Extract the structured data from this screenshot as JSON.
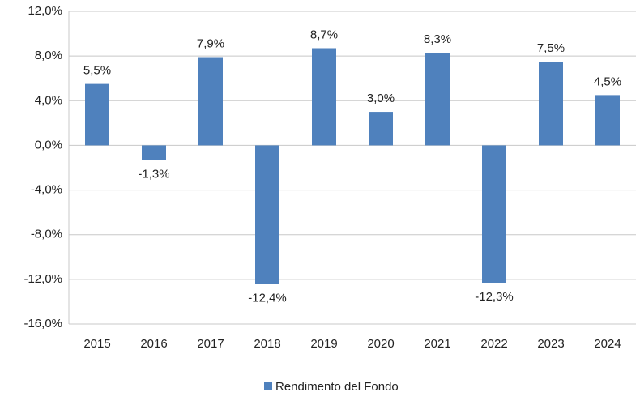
{
  "chart_data": {
    "type": "bar",
    "categories": [
      "2015",
      "2016",
      "2017",
      "2018",
      "2019",
      "2020",
      "2021",
      "2022",
      "2023",
      "2024"
    ],
    "series": [
      {
        "name": "Rendimento del Fondo",
        "color": "#4f81bd",
        "values": [
          5.5,
          -1.3,
          7.9,
          -12.4,
          8.7,
          3.0,
          8.3,
          -12.3,
          7.5,
          4.5
        ],
        "value_labels": [
          "5,5%",
          "-1,3%",
          "7,9%",
          "-12,4%",
          "8,7%",
          "3,0%",
          "8,3%",
          "-12,3%",
          "7,5%",
          "4,5%"
        ]
      }
    ],
    "ylim": [
      -16,
      12
    ],
    "yticks": [
      {
        "value": -16,
        "label": "-16,0%"
      },
      {
        "value": -12,
        "label": "-12,0%"
      },
      {
        "value": -8,
        "label": "-8,0%"
      },
      {
        "value": -4,
        "label": "-4,0%"
      },
      {
        "value": 0,
        "label": "0,0%"
      },
      {
        "value": 4,
        "label": "4,0%"
      },
      {
        "value": 8,
        "label": "8,0%"
      },
      {
        "value": 12,
        "label": "12,0%"
      }
    ],
    "grid": true,
    "legend": "bottom"
  }
}
